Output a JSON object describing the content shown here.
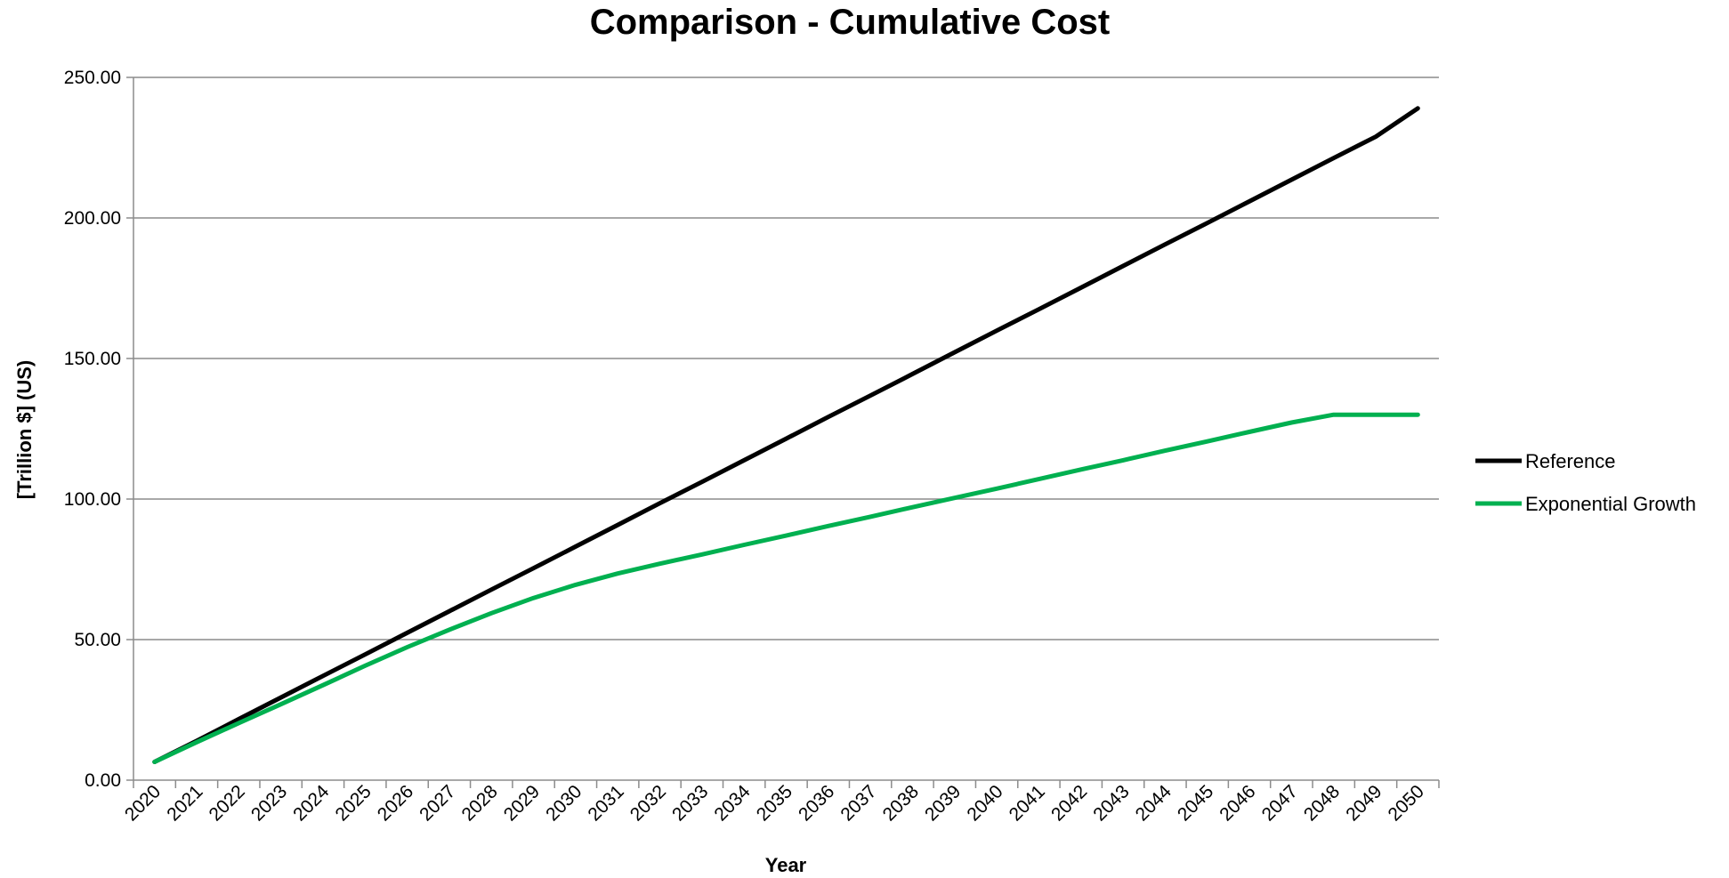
{
  "chart_data": {
    "type": "line",
    "title": "Comparison - Cumulative Cost",
    "xlabel": "Year",
    "ylabel": "[Trillion $] (US)",
    "categories": [
      "2020",
      "2021",
      "2022",
      "2023",
      "2024",
      "2025",
      "2026",
      "2027",
      "2028",
      "2029",
      "2030",
      "2031",
      "2032",
      "2033",
      "2034",
      "2035",
      "2036",
      "2037",
      "2038",
      "2039",
      "2040",
      "2041",
      "2042",
      "2043",
      "2044",
      "2045",
      "2046",
      "2047",
      "2048",
      "2049",
      "2050"
    ],
    "y_ticks": [
      "0.00",
      "50.00",
      "100.00",
      "150.00",
      "200.00",
      "250.00"
    ],
    "ylim": [
      0,
      250
    ],
    "grid": true,
    "legend_position": "right",
    "series": [
      {
        "name": "Reference",
        "color": "#000000",
        "values": [
          6.5,
          14.0,
          21.7,
          29.4,
          37.1,
          44.7,
          52.4,
          60.1,
          67.8,
          75.4,
          83.1,
          90.8,
          98.5,
          106.1,
          113.8,
          121.5,
          129.2,
          136.8,
          144.5,
          152.2,
          159.9,
          167.5,
          175.2,
          182.9,
          190.6,
          198.2,
          205.9,
          213.6,
          221.3,
          228.9,
          239.0
        ]
      },
      {
        "name": "Exponential Growth",
        "color": "#00b050",
        "values": [
          6.5,
          13.5,
          20.3,
          27.0,
          33.8,
          40.7,
          47.3,
          53.5,
          59.4,
          64.8,
          69.5,
          73.5,
          77.0,
          80.3,
          83.7,
          87.0,
          90.4,
          93.7,
          97.1,
          100.4,
          103.7,
          107.1,
          110.5,
          113.8,
          117.2,
          120.5,
          123.9,
          127.2,
          130.0,
          130.0,
          130.0
        ]
      }
    ]
  }
}
